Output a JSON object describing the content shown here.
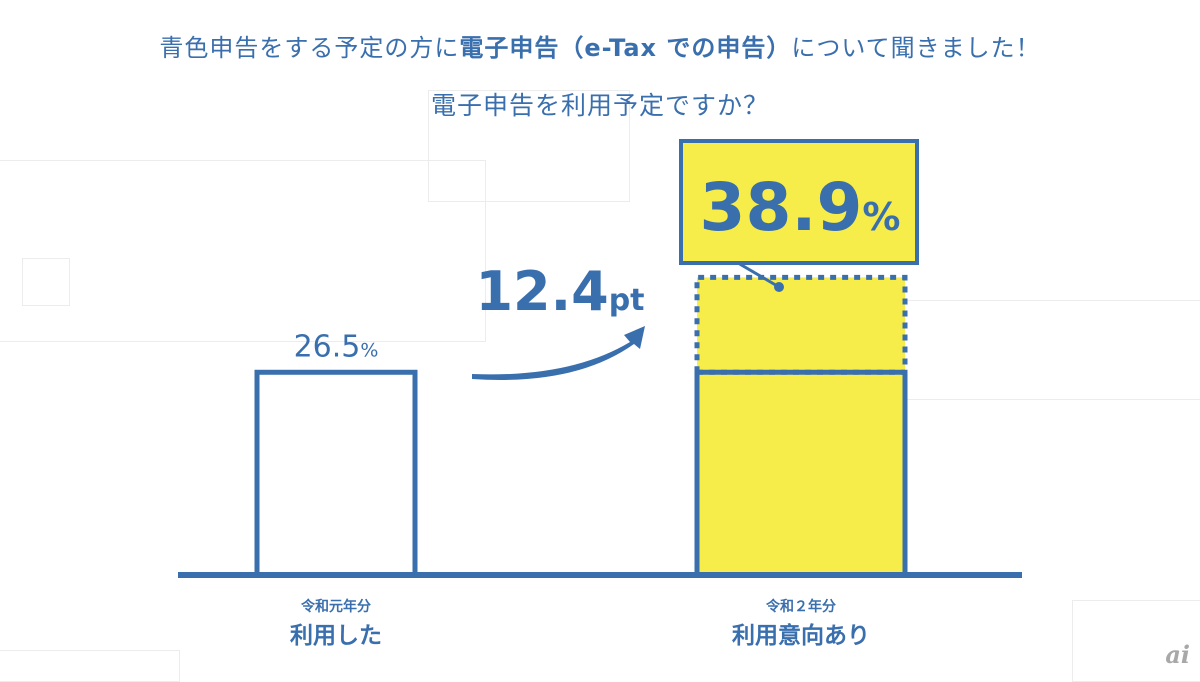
{
  "header": {
    "line1_pre": "青色申告をする予定の方に",
    "line1_bold": "電子申告（e-Tax での申告）",
    "line1_post": "について聞きました！",
    "line2": "電子申告を利用予定ですか？"
  },
  "chart_data": {
    "type": "bar",
    "categories": [
      "令和元年分 利用した",
      "令和２年分 利用意向あり"
    ],
    "values": [
      26.5,
      38.9
    ],
    "bars": [
      {
        "year": "令和元年分",
        "label": "利用した",
        "value": 26.5,
        "value_text": "26.5",
        "unit": "%"
      },
      {
        "year": "令和２年分",
        "label": "利用意向あり",
        "value": 38.9,
        "value_text": "38.9",
        "unit": "%"
      }
    ],
    "annotation": {
      "value_text": "12.4",
      "unit": "pt"
    },
    "colors": {
      "accent": "#3a6fae",
      "highlight": "#f6ec4a"
    }
  },
  "logo": "ai"
}
